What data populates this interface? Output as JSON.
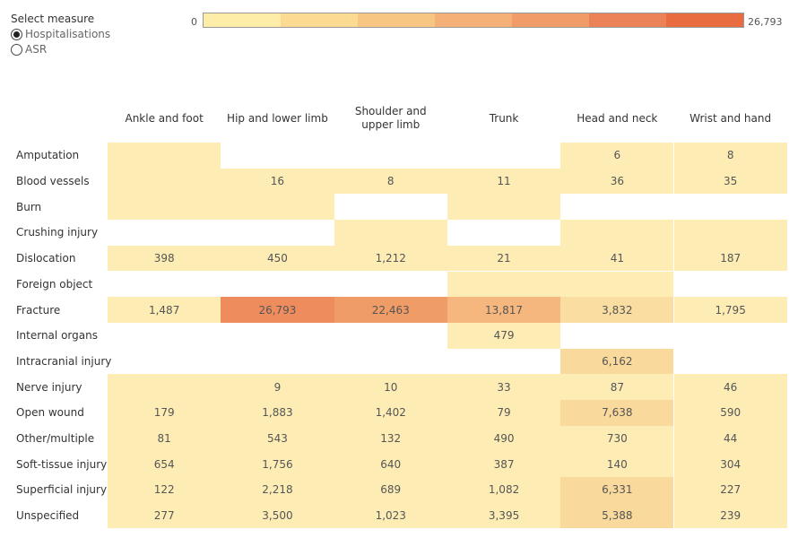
{
  "measure": {
    "title": "Select measure",
    "options": [
      {
        "label": "Hospitalisations",
        "selected": true
      },
      {
        "label": "ASR",
        "selected": false
      }
    ]
  },
  "legend": {
    "min_label": "0",
    "max_label": "26,793",
    "colors": [
      "#FDEDA8",
      "#FBDB92",
      "#F8C683",
      "#F5B078",
      "#F19B69",
      "#EC8258",
      "#E86C3F"
    ]
  },
  "columns": [
    "Ankle and foot",
    "Hip and lower limb",
    "Shoulder and upper limb",
    "Trunk",
    "Head and neck",
    "Wrist and hand"
  ],
  "rows": [
    {
      "label": "Amputation",
      "cells": [
        {
          "text": "",
          "fill": "#FDEDB5"
        },
        {
          "text": "",
          "fill": null
        },
        {
          "text": "",
          "fill": null
        },
        {
          "text": "",
          "fill": null
        },
        {
          "text": "6",
          "fill": "#FDEDB5"
        },
        {
          "text": "8",
          "fill": "#FDEDB5"
        }
      ]
    },
    {
      "label": "Blood vessels",
      "cells": [
        {
          "text": "",
          "fill": "#FDEDB5"
        },
        {
          "text": "16",
          "fill": "#FDEDB5"
        },
        {
          "text": "8",
          "fill": "#FDEDB5"
        },
        {
          "text": "11",
          "fill": "#FDEDB5"
        },
        {
          "text": "36",
          "fill": "#FDEDB5"
        },
        {
          "text": "35",
          "fill": "#FDEDB5"
        }
      ]
    },
    {
      "label": "Burn",
      "cells": [
        {
          "text": "",
          "fill": "#FDEDB5"
        },
        {
          "text": "",
          "fill": "#FDEDB5"
        },
        {
          "text": "",
          "fill": null
        },
        {
          "text": "",
          "fill": "#FDEDB5"
        },
        {
          "text": "",
          "fill": null
        },
        {
          "text": "",
          "fill": null
        }
      ]
    },
    {
      "label": "Crushing injury",
      "cells": [
        {
          "text": "",
          "fill": null
        },
        {
          "text": "",
          "fill": null
        },
        {
          "text": "",
          "fill": "#FDEDB5"
        },
        {
          "text": "",
          "fill": null
        },
        {
          "text": "",
          "fill": "#FDEDB5"
        },
        {
          "text": "",
          "fill": "#FDEDB5"
        }
      ]
    },
    {
      "label": "Dislocation",
      "cells": [
        {
          "text": "398",
          "fill": "#FDEDB5"
        },
        {
          "text": "450",
          "fill": "#FDEDB5"
        },
        {
          "text": "1,212",
          "fill": "#FDEDB5"
        },
        {
          "text": "21",
          "fill": "#FDEDB5"
        },
        {
          "text": "41",
          "fill": "#FDEDB5"
        },
        {
          "text": "187",
          "fill": "#FDEDB5"
        }
      ]
    },
    {
      "label": "Foreign object",
      "cells": [
        {
          "text": "",
          "fill": null
        },
        {
          "text": "",
          "fill": null
        },
        {
          "text": "",
          "fill": null
        },
        {
          "text": "",
          "fill": "#FDEDB5"
        },
        {
          "text": "",
          "fill": "#FDEDB5"
        },
        {
          "text": "",
          "fill": null
        }
      ]
    },
    {
      "label": "Fracture",
      "cells": [
        {
          "text": "1,487",
          "fill": "#FDEDB5"
        },
        {
          "text": "26,793",
          "fill": "#EE8C5E"
        },
        {
          "text": "22,463",
          "fill": "#F09C66"
        },
        {
          "text": "13,817",
          "fill": "#F5B77E"
        },
        {
          "text": "3,832",
          "fill": "#FADDA0"
        },
        {
          "text": "1,795",
          "fill": "#FDEDB5"
        }
      ]
    },
    {
      "label": "Internal organs",
      "cells": [
        {
          "text": "",
          "fill": null
        },
        {
          "text": "",
          "fill": null
        },
        {
          "text": "",
          "fill": null
        },
        {
          "text": "479",
          "fill": "#FDEDB5"
        },
        {
          "text": "",
          "fill": null
        },
        {
          "text": "",
          "fill": null
        }
      ]
    },
    {
      "label": "Intracranial injury",
      "cells": [
        {
          "text": "",
          "fill": null
        },
        {
          "text": "",
          "fill": null
        },
        {
          "text": "",
          "fill": null
        },
        {
          "text": "",
          "fill": null
        },
        {
          "text": "6,162",
          "fill": "#FAD99C"
        },
        {
          "text": "",
          "fill": null
        }
      ]
    },
    {
      "label": "Nerve injury",
      "cells": [
        {
          "text": "",
          "fill": "#FDEDB5"
        },
        {
          "text": "9",
          "fill": "#FDEDB5"
        },
        {
          "text": "10",
          "fill": "#FDEDB5"
        },
        {
          "text": "33",
          "fill": "#FDEDB5"
        },
        {
          "text": "87",
          "fill": "#FDEDB5"
        },
        {
          "text": "46",
          "fill": "#FDEDB5"
        }
      ]
    },
    {
      "label": "Open wound",
      "cells": [
        {
          "text": "179",
          "fill": "#FDEDB5"
        },
        {
          "text": "1,883",
          "fill": "#FDEDB5"
        },
        {
          "text": "1,402",
          "fill": "#FDEDB5"
        },
        {
          "text": "79",
          "fill": "#FDEDB5"
        },
        {
          "text": "7,638",
          "fill": "#FAD99C"
        },
        {
          "text": "590",
          "fill": "#FDEDB5"
        }
      ]
    },
    {
      "label": "Other/multiple",
      "cells": [
        {
          "text": "81",
          "fill": "#FDEDB5"
        },
        {
          "text": "543",
          "fill": "#FDEDB5"
        },
        {
          "text": "132",
          "fill": "#FDEDB5"
        },
        {
          "text": "490",
          "fill": "#FDEDB5"
        },
        {
          "text": "730",
          "fill": "#FDEDB5"
        },
        {
          "text": "44",
          "fill": "#FDEDB5"
        }
      ]
    },
    {
      "label": "Soft-tissue injury",
      "cells": [
        {
          "text": "654",
          "fill": "#FDEDB5"
        },
        {
          "text": "1,756",
          "fill": "#FDEDB5"
        },
        {
          "text": "640",
          "fill": "#FDEDB5"
        },
        {
          "text": "387",
          "fill": "#FDEDB5"
        },
        {
          "text": "140",
          "fill": "#FDEDB5"
        },
        {
          "text": "304",
          "fill": "#FDEDB5"
        }
      ]
    },
    {
      "label": "Superficial injury",
      "cells": [
        {
          "text": "122",
          "fill": "#FDEDB5"
        },
        {
          "text": "2,218",
          "fill": "#FDEDB5"
        },
        {
          "text": "689",
          "fill": "#FDEDB5"
        },
        {
          "text": "1,082",
          "fill": "#FDEDB5"
        },
        {
          "text": "6,331",
          "fill": "#FAD99C"
        },
        {
          "text": "227",
          "fill": "#FDEDB5"
        }
      ]
    },
    {
      "label": "Unspecified",
      "cells": [
        {
          "text": "277",
          "fill": "#FDEDB5"
        },
        {
          "text": "3,500",
          "fill": "#FDEDB5"
        },
        {
          "text": "1,023",
          "fill": "#FDEDB5"
        },
        {
          "text": "3,395",
          "fill": "#FDEDB5"
        },
        {
          "text": "5,388",
          "fill": "#FAD99C"
        },
        {
          "text": "239",
          "fill": "#FDEDB5"
        }
      ]
    }
  ]
}
